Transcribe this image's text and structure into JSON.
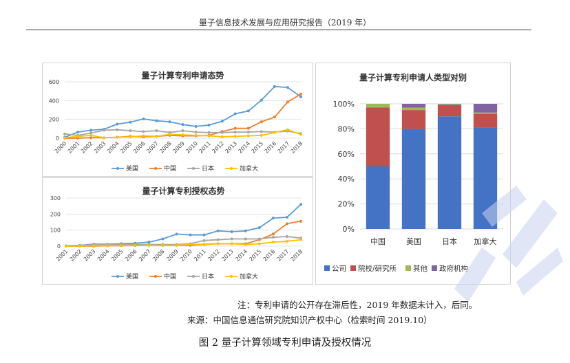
{
  "header": {
    "title": "量子信息技术发展与应用研究报告（2019 年）"
  },
  "chart_data": [
    {
      "type": "line",
      "title": "量子计算专利申请态势",
      "categories": [
        "2000",
        "2001",
        "2002",
        "2003",
        "2004",
        "2005",
        "2006",
        "2007",
        "2008",
        "2009",
        "2010",
        "2011",
        "2012",
        "2013",
        "2014",
        "2015",
        "2016",
        "2017",
        "2018"
      ],
      "ylim": [
        0,
        600
      ],
      "yticks": [
        "0",
        "200",
        "400",
        "600"
      ],
      "series": [
        {
          "name": "美国",
          "color": "#5B9BD5",
          "values": [
            10,
            65,
            85,
            95,
            150,
            170,
            205,
            185,
            175,
            145,
            125,
            140,
            180,
            260,
            290,
            405,
            550,
            540,
            440
          ]
        },
        {
          "name": "中国",
          "color": "#ED7D31",
          "values": [
            0,
            0,
            5,
            5,
            10,
            20,
            15,
            20,
            30,
            25,
            25,
            30,
            70,
            105,
            105,
            175,
            225,
            385,
            470
          ]
        },
        {
          "name": "日本",
          "color": "#A5A5A5",
          "values": [
            45,
            30,
            55,
            85,
            90,
            80,
            70,
            80,
            60,
            80,
            65,
            60,
            60,
            65,
            65,
            70,
            65,
            75,
            50
          ]
        },
        {
          "name": "加拿大",
          "color": "#FFC000",
          "values": [
            5,
            20,
            30,
            5,
            10,
            15,
            25,
            20,
            40,
            35,
            30,
            25,
            15,
            20,
            25,
            30,
            60,
            90,
            40
          ]
        }
      ]
    },
    {
      "type": "line",
      "title": "量子计算专利授权态势",
      "categories": [
        "2001",
        "2002",
        "2003",
        "2004",
        "2005",
        "2006",
        "2007",
        "2008",
        "2009",
        "2010",
        "2011",
        "2012",
        "2013",
        "2014",
        "2015",
        "2016",
        "2017",
        "2018"
      ],
      "ylim": [
        0,
        300
      ],
      "yticks": [
        "0",
        "100",
        "200",
        "300"
      ],
      "series": [
        {
          "name": "美国",
          "color": "#5B9BD5",
          "values": [
            2,
            5,
            12,
            12,
            15,
            18,
            25,
            45,
            75,
            70,
            70,
            95,
            90,
            95,
            115,
            175,
            180,
            260
          ]
        },
        {
          "name": "中国",
          "color": "#ED7D31",
          "values": [
            0,
            0,
            0,
            2,
            3,
            4,
            5,
            5,
            5,
            5,
            10,
            15,
            15,
            15,
            40,
            75,
            140,
            155
          ]
        },
        {
          "name": "日本",
          "color": "#A5A5A5",
          "values": [
            0,
            2,
            8,
            10,
            10,
            10,
            10,
            10,
            10,
            15,
            35,
            40,
            45,
            45,
            45,
            55,
            60,
            50
          ]
        },
        {
          "name": "加拿大",
          "color": "#FFC000",
          "values": [
            0,
            1,
            3,
            3,
            5,
            5,
            5,
            5,
            5,
            10,
            12,
            15,
            15,
            10,
            15,
            25,
            30,
            40
          ]
        }
      ]
    },
    {
      "type": "bar",
      "stacked": true,
      "title": "量子计算专利申请人类型对别",
      "categories": [
        "中国",
        "美国",
        "日本",
        "加拿大"
      ],
      "yticks": [
        "0%",
        "20%",
        "40%",
        "60%",
        "80%",
        "100%"
      ],
      "ylim": [
        0,
        100
      ],
      "series": [
        {
          "name": "公司",
          "color": "#4472C4",
          "values": [
            50,
            80,
            90,
            81
          ]
        },
        {
          "name": "院校/研究所",
          "color": "#C0504D",
          "values": [
            47,
            15,
            9,
            11
          ]
        },
        {
          "name": "其他",
          "color": "#9BBB59",
          "values": [
            3,
            2,
            0.5,
            1
          ]
        },
        {
          "name": "政府机构",
          "color": "#8064A2",
          "values": [
            0,
            3,
            0.5,
            7
          ]
        }
      ]
    }
  ],
  "notes": {
    "note1": "注：专利申请的公开存在滞后性，2019 年数据未计入，后同。",
    "source": "来源：中国信息通信研究院知识产权中心（检索时间 2019.10）"
  },
  "caption": "图 2  量子计算领域专利申请及授权情况"
}
